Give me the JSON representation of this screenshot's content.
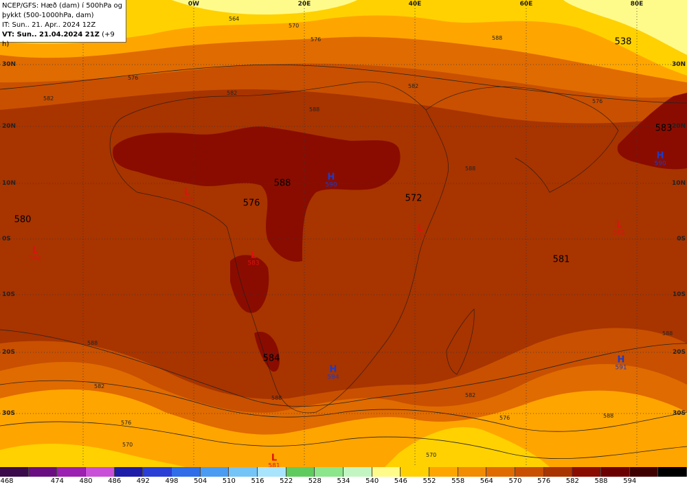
{
  "header": {
    "line1": "NCEP/GFS: Hæð (dam) í 500hPa og",
    "line2": "þykkt (500-1000hPa, dam)",
    "line3": "IT: Sun.. 21. Apr.. 2024 12Z",
    "line4_strong": "VT: Sun.. 21.04.2024 21Z",
    "line4_rest": " (+9 h)"
  },
  "longitudes": [
    "0W",
    "20E",
    "40E",
    "60E",
    "80E"
  ],
  "latitudes": [
    "30N",
    "20N",
    "10N",
    "0S",
    "10S",
    "20S",
    "30S"
  ],
  "values": [
    "538",
    "583",
    "588",
    "576",
    "572",
    "580",
    "581",
    "584"
  ],
  "pressure_centers": [
    {
      "type": "H",
      "value": "590"
    },
    {
      "type": "H",
      "value": "590"
    },
    {
      "type": "H",
      "value": "594"
    },
    {
      "type": "H",
      "value": "591"
    },
    {
      "type": "L",
      "value": "583"
    },
    {
      "type": "L",
      "value": "583"
    },
    {
      "type": "L",
      "value": "582"
    },
    {
      "type": "L",
      "value": "580"
    },
    {
      "type": "L",
      "value": "582"
    },
    {
      "type": "L",
      "value": "581"
    }
  ],
  "contour_labels": [
    "564",
    "570",
    "576",
    "576",
    "582",
    "582",
    "588",
    "588",
    "582",
    "576",
    "570",
    "576",
    "582",
    "588",
    "588",
    "588",
    "582",
    "570",
    "576",
    "588",
    "588"
  ],
  "legend": {
    "colors": [
      "#3b0a4a",
      "#6a0d83",
      "#9b1fb0",
      "#c94fd8",
      "#1c1ca8",
      "#2a3fd6",
      "#2f6ee8",
      "#4a9cf2",
      "#74c4f7",
      "#a8e4fb",
      "#5fcb5f",
      "#8ce68c",
      "#c3f5c3",
      "#fffb8a",
      "#ffd100",
      "#ffa500",
      "#f28c00",
      "#e06b00",
      "#c85000",
      "#a83400",
      "#8a0c00",
      "#6a0000",
      "#3f0000",
      "#000000"
    ],
    "ticks": [
      "468",
      "474",
      "480",
      "486",
      "492",
      "498",
      "504",
      "510",
      "516",
      "522",
      "528",
      "534",
      "540",
      "546",
      "552",
      "558",
      "564",
      "570",
      "576",
      "582",
      "588",
      "594"
    ]
  }
}
